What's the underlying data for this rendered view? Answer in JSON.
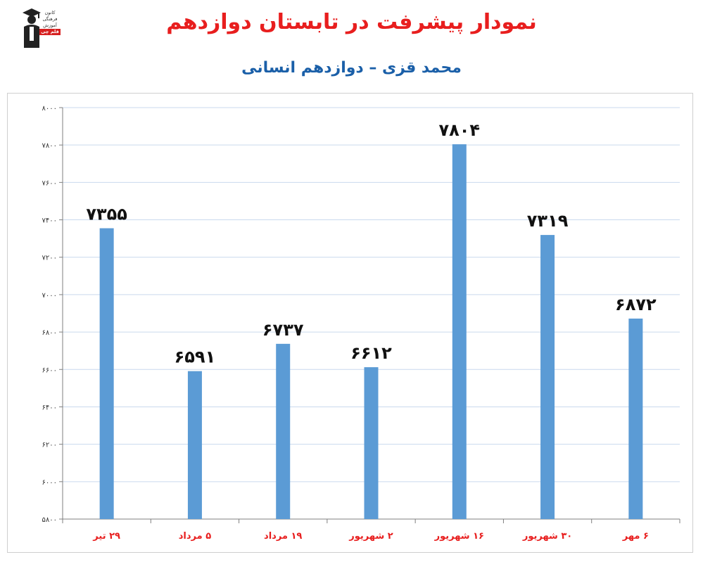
{
  "header": {
    "title": "نمودار پیشرفت در تابستان دوازدهم",
    "subtitle": "محمد قزی – دوازدهم انسانی"
  },
  "logo": {
    "icon": "graduate-icon",
    "lines": [
      "کانون",
      "فرهنگی",
      "آموزش"
    ],
    "brand": "قلم چی"
  },
  "colors": {
    "title": "#e81e1e",
    "subtitle": "#1a5fa8",
    "bar": "#5b9bd5",
    "category_label": "#e81e1e",
    "gridline": "#c9d9ee"
  },
  "chart_data": {
    "type": "bar",
    "categories": [
      "۲۹ تیر",
      "۵ مرداد",
      "۱۹ مرداد",
      "۲ شهریور",
      "۱۶ شهریور",
      "۳۰ شهریور",
      "۶ مهر"
    ],
    "values": [
      7355,
      6591,
      6737,
      6612,
      7804,
      7319,
      6872
    ],
    "data_labels": [
      "۷۳۵۵",
      "۶۵۹۱",
      "۶۷۳۷",
      "۶۶۱۲",
      "۷۸۰۴",
      "۷۳۱۹",
      "۶۸۷۲"
    ],
    "ylim": [
      5800,
      8000
    ],
    "yticks": [
      5800,
      6000,
      6200,
      6400,
      6600,
      6800,
      7000,
      7200,
      7400,
      7600,
      7800,
      8000
    ],
    "ytick_labels": [
      "۵۸۰۰",
      "۶۰۰۰",
      "۶۲۰۰",
      "۶۴۰۰",
      "۶۶۰۰",
      "۶۸۰۰",
      "۷۰۰۰",
      "۷۲۰۰",
      "۷۴۰۰",
      "۷۶۰۰",
      "۷۸۰۰",
      "۸۰۰۰"
    ],
    "xlabel": "",
    "ylabel": "",
    "grid": true,
    "legend": "none"
  }
}
